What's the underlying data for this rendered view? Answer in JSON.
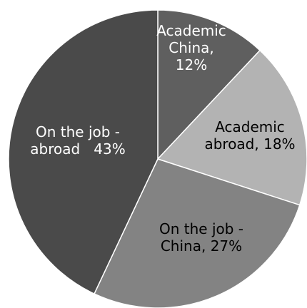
{
  "chart_data": {
    "type": "pie",
    "title": "",
    "slices": [
      {
        "label": "Academic China",
        "value": 12,
        "label_lines": [
          "Academic",
          "China,",
          "12%"
        ],
        "color": "#5f5f5f",
        "label_color": "#ffffff"
      },
      {
        "label": "Academic abroad",
        "value": 18,
        "label_lines": [
          "Academic",
          "abroad, 18%"
        ],
        "color": "#b3b3b3",
        "label_color": "#000000"
      },
      {
        "label": "On the job - China",
        "value": 27,
        "label_lines": [
          "On the job -",
          "China, 27%"
        ],
        "color": "#838383",
        "label_color": "#000000"
      },
      {
        "label": "On the job - abroad",
        "value": 43,
        "label_lines": [
          "On the job -",
          "abroad   43%"
        ],
        "color": "#4a4a4a",
        "label_color": "#ffffff"
      }
    ],
    "slice_border_color": "#ffffff",
    "legend": "none"
  }
}
